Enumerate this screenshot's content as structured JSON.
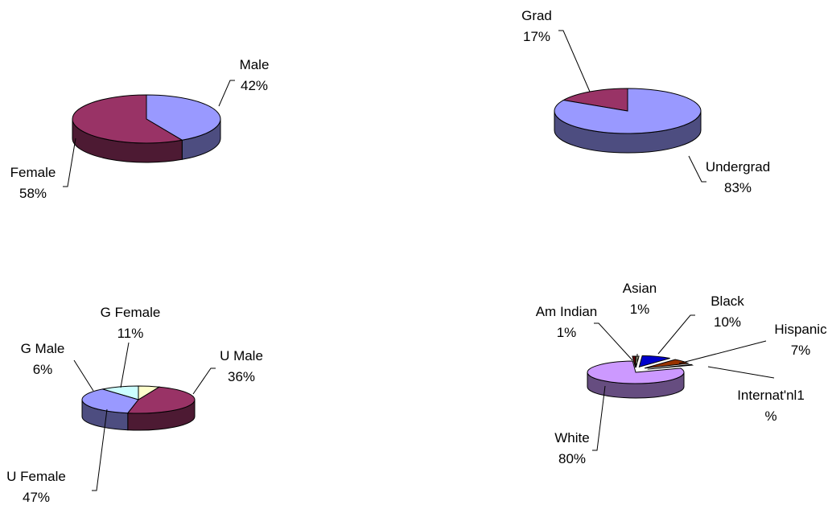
{
  "chart_data": [
    {
      "type": "pie",
      "title": "",
      "slices": [
        {
          "label": "Male",
          "percent": "42%",
          "value": 42,
          "top": "#9999ff",
          "side": "#4d4d80"
        },
        {
          "label": "Female",
          "percent": "58%",
          "value": 58,
          "top": "#993366",
          "side": "#4d1a33"
        }
      ]
    },
    {
      "type": "pie",
      "title": "",
      "slices": [
        {
          "label": "Grad",
          "percent": "17%",
          "value": 17,
          "top": "#993366",
          "side": "#4d1a33"
        },
        {
          "label": "Undergrad",
          "percent": "83%",
          "value": 83,
          "top": "#9999ff",
          "side": "#4d4d80"
        }
      ]
    },
    {
      "type": "pie",
      "title": "",
      "slices": [
        {
          "label": "G Female",
          "percent": "11%",
          "value": 11,
          "top": "#ccffff",
          "side": "#668080"
        },
        {
          "label": "U Male",
          "percent": "36%",
          "value": 36,
          "top": "#9999ff",
          "side": "#4d4d80"
        },
        {
          "label": "U Female",
          "percent": "47%",
          "value": 47,
          "top": "#993366",
          "side": "#4d1a33"
        },
        {
          "label": "G Male",
          "percent": "6%",
          "value": 6,
          "top": "#ffffcc",
          "side": "#808066"
        }
      ]
    },
    {
      "type": "pie",
      "title": "",
      "slices": [
        {
          "label": "Asian",
          "percent": "1%",
          "value": 1,
          "top": "#ffffcc",
          "side": "#808066"
        },
        {
          "label": "Black",
          "percent": "10%",
          "value": 10,
          "top": "#0000cc",
          "side": "#000066"
        },
        {
          "label": "Hispanic",
          "percent": "7%",
          "value": 7,
          "top": "#993300",
          "side": "#4d1a00"
        },
        {
          "label": "Internat'nl1\n%",
          "percent": "",
          "value": 1,
          "top": "#008080",
          "side": "#004040"
        },
        {
          "label": "White",
          "percent": "80%",
          "value": 80,
          "top": "#cc99ff",
          "side": "#664d80"
        },
        {
          "label": "Am Indian",
          "percent": "1%",
          "value": 1,
          "top": "#660000",
          "side": "#330000"
        }
      ]
    }
  ]
}
